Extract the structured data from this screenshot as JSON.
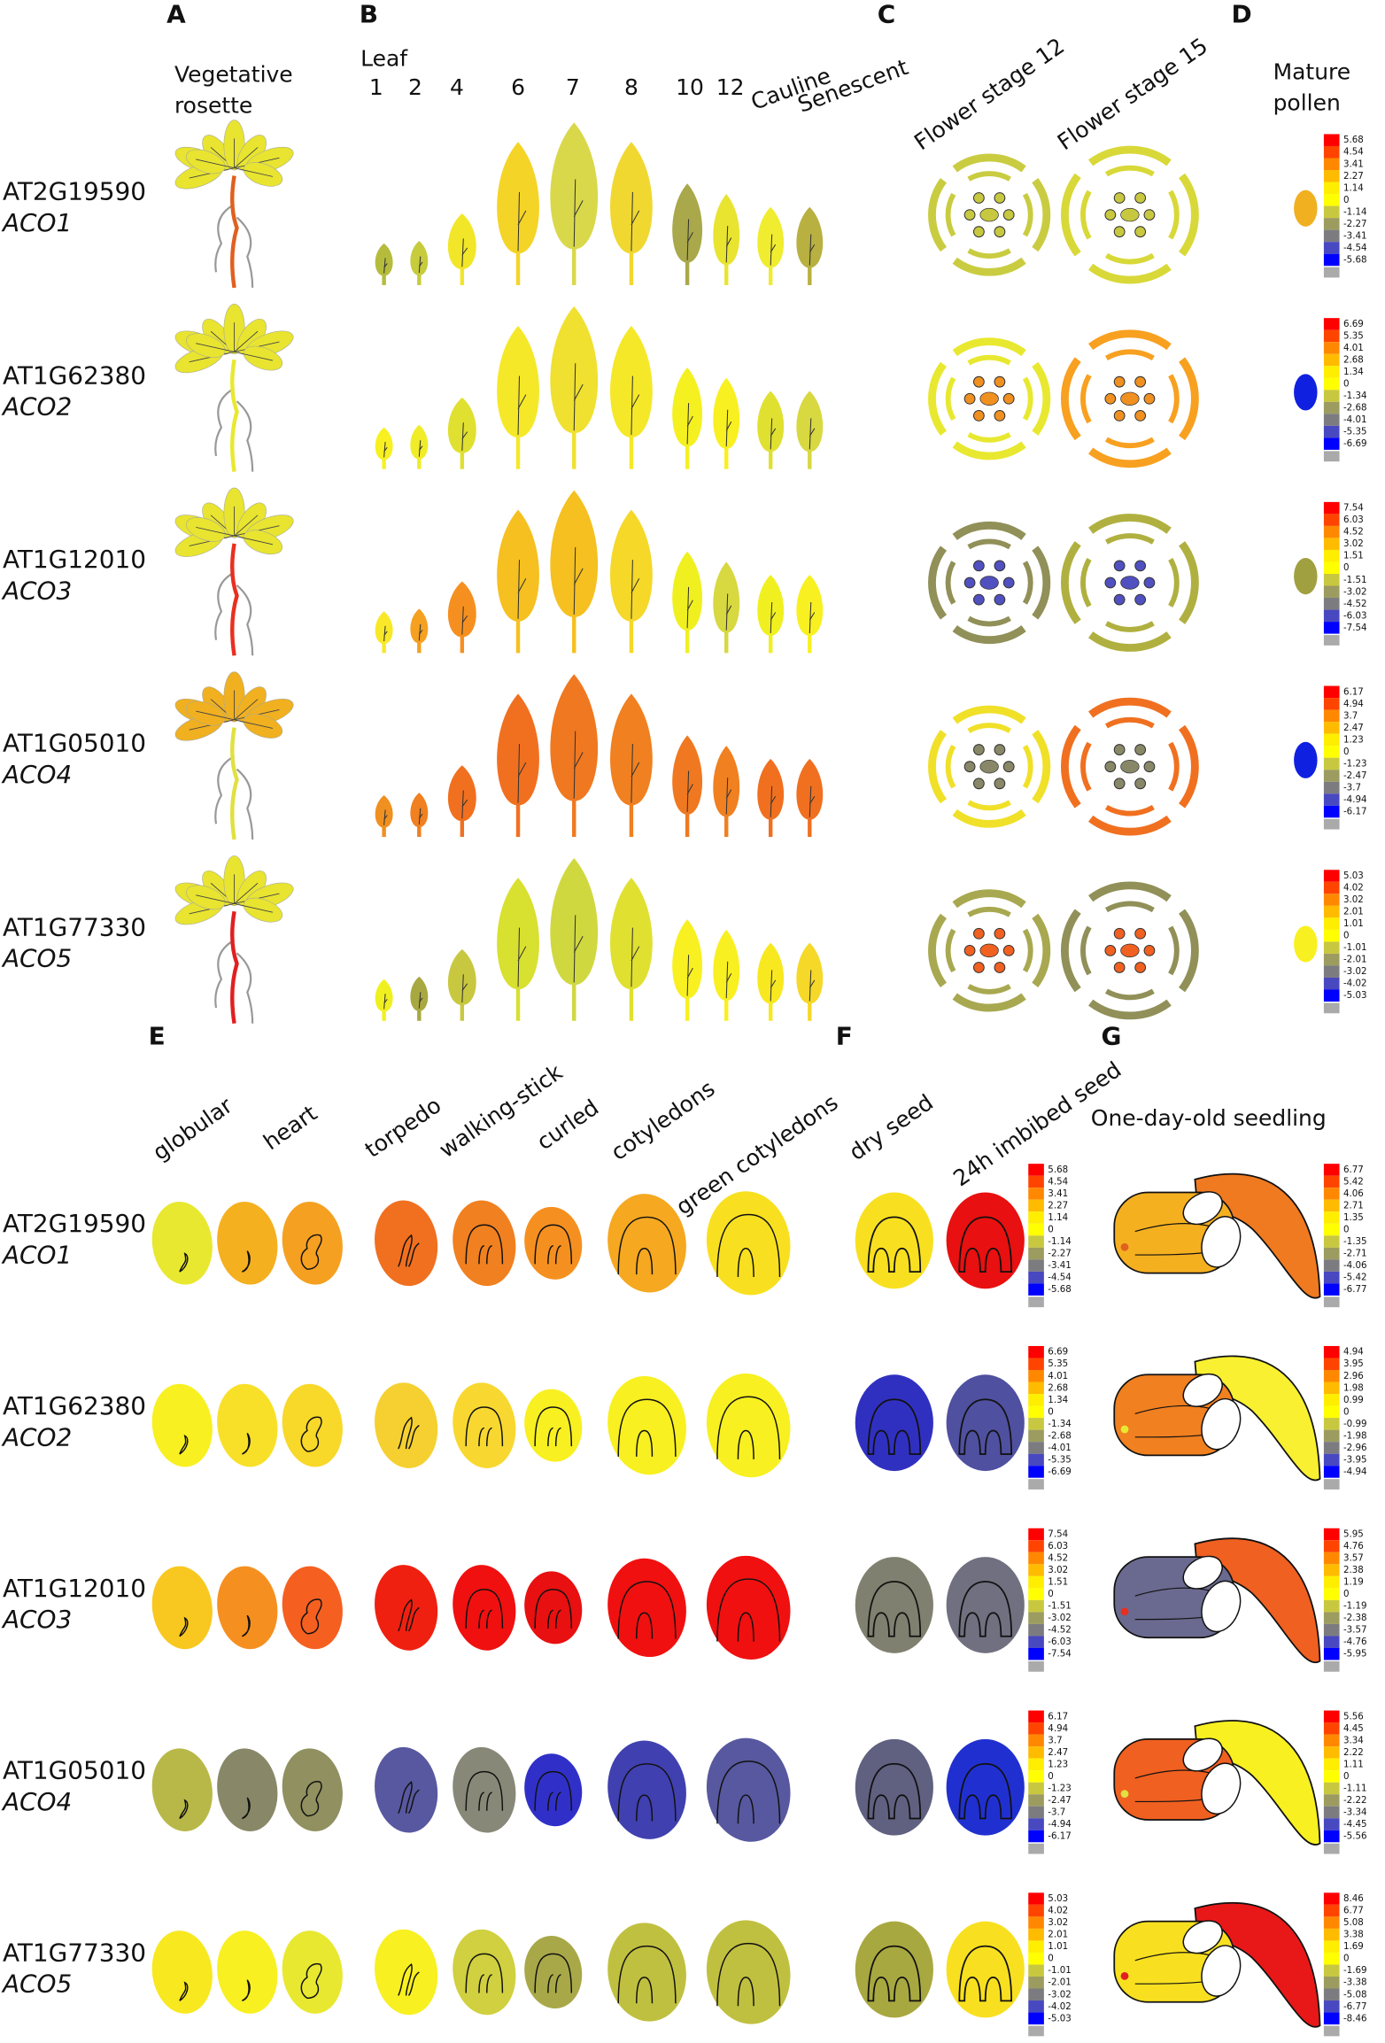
{
  "panels": [
    "A",
    "B",
    "C",
    "D",
    "E",
    "F",
    "G"
  ],
  "genes": [
    {
      "id": "AT2G19590",
      "name": "ACO1"
    },
    {
      "id": "AT1G62380",
      "name": "ACO2"
    },
    {
      "id": "AT1G12010",
      "name": "ACO3"
    },
    {
      "id": "AT1G05010",
      "name": "ACO4"
    },
    {
      "id": "AT1G77330",
      "name": "ACO5"
    }
  ],
  "rosette_label": [
    "Vegetative",
    "rosette"
  ],
  "leaf_title": "Leaf",
  "leaf_labels": [
    "1",
    "2",
    "4",
    "6",
    "7",
    "8",
    "10",
    "12",
    "Cauline",
    "Senescent"
  ],
  "flower_labels": [
    "Flower stage 12",
    "Flower stage 15"
  ],
  "pollen_label": [
    "Mature",
    "pollen"
  ],
  "embryo_labels": [
    "globular",
    "heart",
    "torpedo",
    "walking-stick",
    "curled",
    "cotyledons",
    "green cotyledons"
  ],
  "seed_labels": [
    "dry seed",
    "24h imbibed seed"
  ],
  "seedling_label": "One-day-old seedling",
  "scale_main": [
    [
      5.68,
      4.54,
      3.41,
      2.27,
      1.14,
      0,
      -1.14,
      -2.27,
      -3.41,
      -4.54,
      -5.68
    ],
    [
      6.69,
      5.35,
      4.01,
      2.68,
      1.34,
      0,
      -1.34,
      -2.68,
      -4.01,
      -5.35,
      -6.69
    ],
    [
      7.54,
      6.03,
      4.52,
      3.02,
      1.51,
      0,
      -1.51,
      -3.02,
      -4.52,
      -6.03,
      -7.54
    ],
    [
      6.17,
      4.94,
      3.7,
      2.47,
      1.23,
      0,
      -1.23,
      -2.47,
      -3.7,
      -4.94,
      -6.17
    ],
    [
      5.03,
      4.02,
      3.02,
      2.01,
      1.01,
      0,
      -1.01,
      -2.01,
      -3.02,
      -4.02,
      -5.03
    ]
  ],
  "scale_seedling": [
    [
      6.77,
      5.42,
      4.06,
      2.71,
      1.35,
      0,
      -1.35,
      -2.71,
      -4.06,
      -5.42,
      -6.77
    ],
    [
      4.94,
      3.95,
      2.96,
      1.98,
      0.99,
      0,
      -0.99,
      -1.98,
      -2.96,
      -3.95,
      -4.94
    ],
    [
      5.95,
      4.76,
      3.57,
      2.38,
      1.19,
      0,
      -1.19,
      -2.38,
      -3.57,
      -4.76,
      -5.95
    ],
    [
      5.56,
      4.45,
      3.34,
      2.22,
      1.11,
      0,
      -1.11,
      -2.22,
      -3.34,
      -4.45,
      -5.56
    ],
    [
      8.46,
      6.77,
      5.08,
      3.38,
      1.69,
      0,
      -1.69,
      -3.38,
      -5.08,
      -6.77,
      -8.46
    ]
  ],
  "colors": [
    {
      "rosette": "#e8e430",
      "root": "#e06020",
      "leaves": [
        "#b5bc3c",
        "#c6cc3c",
        "#f2e628",
        "#f5d428",
        "#d9d84a",
        "#f0d830",
        "#a9a84a",
        "#e8e430",
        "#f0ec30",
        "#b8b040"
      ],
      "flower12": "#c9cc40",
      "flower15": "#d8d838",
      "flower_inner": "#c8c840",
      "pollen": "#f0b020",
      "embryos": [
        "#e8e830",
        "#f5b020",
        "#f5a020",
        "#f07020",
        "#f08020",
        "#f59020",
        "#f5a820",
        "#f8e020"
      ],
      "seeds": [
        "#f8e020",
        "#e81010"
      ],
      "seedling": [
        "#f5b020",
        "#f07a20"
      ]
    },
    {
      "rosette": "#e8e430",
      "root": "#e8e830",
      "leaves": [
        "#f8f020",
        "#f0ec28",
        "#e0e030",
        "#f5e828",
        "#f0e030",
        "#f5e828",
        "#f5f020",
        "#f8f020",
        "#e0e030",
        "#d8d840"
      ],
      "flower12": "#e8e830",
      "flower15": "#f8a020",
      "flower_inner": "#f09020",
      "pollen": "#1020e0",
      "embryos": [
        "#f8f020",
        "#f8e028",
        "#f8d828",
        "#f5d030",
        "#f8d830",
        "#f8f020",
        "#f8f020",
        "#f8f020"
      ],
      "seeds": [
        "#3030c0",
        "#5050a0"
      ],
      "seedling": [
        "#f08020",
        "#f8f030"
      ]
    },
    {
      "rosette": "#e8e430",
      "root": "#e83020",
      "leaves": [
        "#f8e828",
        "#f5a020",
        "#f59020",
        "#f5c020",
        "#f5c020",
        "#f5d828",
        "#f0f020",
        "#d8d840",
        "#f0f020",
        "#f8f020"
      ],
      "flower12": "#909058",
      "flower15": "#b0b040",
      "flower_inner": "#5050c0",
      "pollen": "#a0a040",
      "embryos": [
        "#f8c820",
        "#f59020",
        "#f56020",
        "#f02010",
        "#f01010",
        "#e81010",
        "#f01010",
        "#f01010"
      ],
      "seeds": [
        "#808070",
        "#707080"
      ],
      "seedling": [
        "#6a6a90",
        "#f06020"
      ]
    },
    {
      "rosette": "#f0b020",
      "root": "#e0e040",
      "leaves": [
        "#f09020",
        "#f08020",
        "#f07020",
        "#f07020",
        "#f07820",
        "#f08020",
        "#f07820",
        "#f08020",
        "#f07020",
        "#f07020"
      ],
      "flower12": "#f0e028",
      "flower15": "#f07020",
      "flower_inner": "#888868",
      "pollen": "#1020e0",
      "embryos": [
        "#b8b848",
        "#888868",
        "#909060",
        "#5858a0",
        "#888878",
        "#3030c8",
        "#4040b0",
        "#5858a0"
      ],
      "seeds": [
        "#606080",
        "#2030d0"
      ],
      "seedling": [
        "#f06020",
        "#f8f020"
      ]
    },
    {
      "rosette": "#e8e430",
      "root": "#e02020",
      "leaves": [
        "#f0f020",
        "#a8a840",
        "#c8c840",
        "#d8e030",
        "#d0d840",
        "#e0e030",
        "#f8f020",
        "#f8f020",
        "#f8e820",
        "#f5d828"
      ],
      "flower12": "#a8a850",
      "flower15": "#909058",
      "flower_inner": "#f06020",
      "pollen": "#f8f020",
      "embryos": [
        "#f8e820",
        "#f8f020",
        "#e8e830",
        "#f8f020",
        "#d0d040",
        "#a8a848",
        "#c0c040",
        "#c0c040"
      ],
      "seeds": [
        "#a8a840",
        "#f8e020"
      ],
      "seedling": [
        "#f8e020",
        "#e81818"
      ]
    }
  ]
}
